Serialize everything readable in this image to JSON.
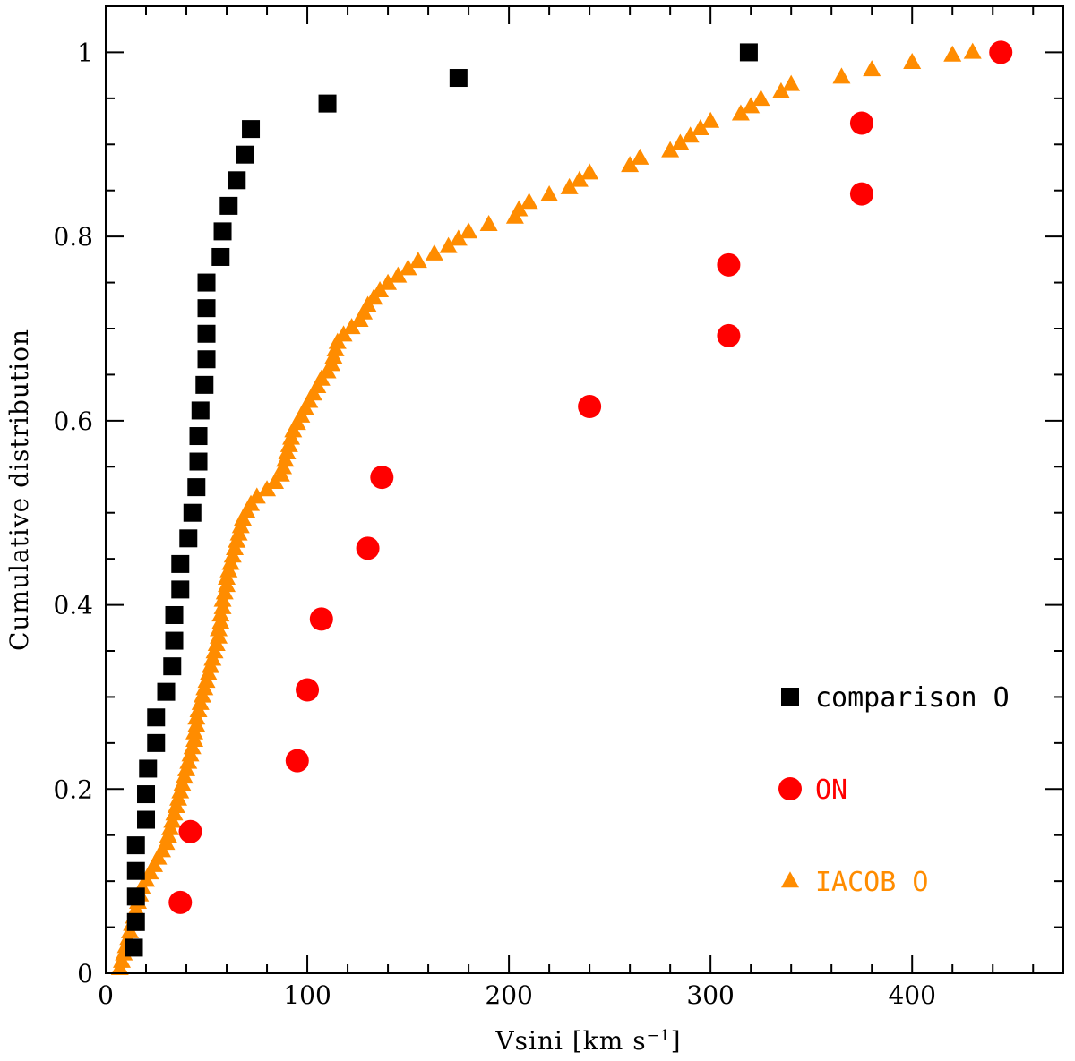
{
  "chart_data": {
    "type": "scatter",
    "title": "",
    "xlabel": "Vsini [km s",
    "xlabel_sup": "−1",
    "xlabel_close": "]",
    "ylabel": "Cumulative distribution",
    "xlim": [
      0,
      475
    ],
    "ylim": [
      0,
      1.05
    ],
    "grid": false,
    "legend_position": "bottom-right",
    "x_ticks": [
      {
        "value": 0,
        "label": "0"
      },
      {
        "value": 100,
        "label": "100"
      },
      {
        "value": 200,
        "label": "200"
      },
      {
        "value": 300,
        "label": "300"
      },
      {
        "value": 400,
        "label": "400"
      }
    ],
    "y_ticks": [
      {
        "value": 0,
        "label": "0"
      },
      {
        "value": 0.2,
        "label": "0.2"
      },
      {
        "value": 0.4,
        "label": "0.4"
      },
      {
        "value": 0.6,
        "label": "0.6"
      },
      {
        "value": 0.8,
        "label": "0.8"
      },
      {
        "value": 1,
        "label": "1"
      }
    ],
    "series": [
      {
        "name": "comparison O",
        "marker": "square",
        "color": "#000000",
        "x": [
          14,
          15,
          15,
          15,
          15,
          20,
          20,
          21,
          25,
          25,
          30,
          33,
          34,
          34,
          37,
          37,
          41,
          43,
          45,
          46,
          46,
          47,
          49,
          50,
          50,
          50,
          50,
          57,
          58,
          61,
          65,
          69,
          72,
          110,
          175,
          319
        ],
        "y": [
          0.0278,
          0.0556,
          0.0833,
          0.1111,
          0.1389,
          0.1667,
          0.1944,
          0.2222,
          0.25,
          0.2778,
          0.3056,
          0.3333,
          0.3611,
          0.3889,
          0.4167,
          0.4444,
          0.4722,
          0.5,
          0.5278,
          0.5556,
          0.5833,
          0.6111,
          0.6389,
          0.6667,
          0.6944,
          0.7222,
          0.75,
          0.7778,
          0.8056,
          0.8333,
          0.8611,
          0.8889,
          0.9167,
          0.9444,
          0.9722,
          1.0
        ]
      },
      {
        "name": "ON",
        "marker": "circle",
        "color": "#ff0000",
        "x": [
          37,
          42,
          95,
          100,
          107,
          130,
          137,
          240,
          309,
          309,
          375,
          375,
          444
        ],
        "y": [
          0.0769,
          0.1538,
          0.2308,
          0.3077,
          0.3846,
          0.4615,
          0.5385,
          0.6154,
          0.6923,
          0.7692,
          0.8462,
          0.9231,
          1.0
        ]
      },
      {
        "name": "IACOB O",
        "marker": "triangle",
        "color": "#ff8c00",
        "x": [
          7,
          8,
          9,
          10,
          11,
          12,
          13,
          14,
          15,
          16,
          17,
          18,
          20,
          22,
          24,
          26,
          28,
          30,
          31,
          32,
          33,
          34,
          35,
          36,
          37,
          38,
          39,
          40,
          41,
          42,
          43,
          44,
          44,
          45,
          45,
          46,
          47,
          48,
          49,
          50,
          51,
          52,
          53,
          54,
          55,
          56,
          56,
          57,
          57,
          58,
          58,
          59,
          60,
          60,
          61,
          62,
          63,
          64,
          65,
          66,
          67,
          68,
          70,
          72,
          75,
          80,
          84,
          87,
          88,
          89,
          90,
          91,
          92,
          93,
          95,
          97,
          99,
          101,
          103,
          105,
          107,
          110,
          112,
          113,
          114,
          115,
          118,
          122,
          126,
          128,
          130,
          133,
          136,
          140,
          145,
          150,
          155,
          163,
          170,
          175,
          180,
          190,
          203,
          205,
          210,
          220,
          230,
          235,
          240,
          260,
          265,
          280,
          285,
          290,
          295,
          300,
          315,
          320,
          325,
          335,
          340,
          365,
          380,
          400,
          420,
          430
        ],
        "y": [
          0.005,
          0.013,
          0.021,
          0.029,
          0.037,
          0.045,
          0.053,
          0.061,
          0.069,
          0.077,
          0.085,
          0.093,
          0.101,
          0.109,
          0.117,
          0.125,
          0.133,
          0.141,
          0.149,
          0.157,
          0.165,
          0.173,
          0.181,
          0.189,
          0.197,
          0.205,
          0.213,
          0.221,
          0.229,
          0.237,
          0.245,
          0.253,
          0.261,
          0.269,
          0.277,
          0.285,
          0.293,
          0.301,
          0.309,
          0.317,
          0.325,
          0.333,
          0.341,
          0.349,
          0.357,
          0.365,
          0.373,
          0.381,
          0.389,
          0.397,
          0.405,
          0.413,
          0.421,
          0.429,
          0.437,
          0.445,
          0.453,
          0.461,
          0.469,
          0.477,
          0.485,
          0.493,
          0.501,
          0.509,
          0.517,
          0.525,
          0.533,
          0.541,
          0.549,
          0.557,
          0.565,
          0.573,
          0.581,
          0.589,
          0.597,
          0.605,
          0.613,
          0.621,
          0.629,
          0.637,
          0.645,
          0.653,
          0.661,
          0.669,
          0.677,
          0.685,
          0.693,
          0.701,
          0.709,
          0.717,
          0.725,
          0.733,
          0.741,
          0.749,
          0.757,
          0.765,
          0.773,
          0.781,
          0.789,
          0.797,
          0.805,
          0.813,
          0.821,
          0.829,
          0.837,
          0.845,
          0.853,
          0.861,
          0.869,
          0.877,
          0.885,
          0.893,
          0.901,
          0.909,
          0.917,
          0.925,
          0.933,
          0.941,
          0.949,
          0.957,
          0.965,
          0.973,
          0.981,
          0.989,
          0.997,
          1.0
        ]
      }
    ]
  }
}
